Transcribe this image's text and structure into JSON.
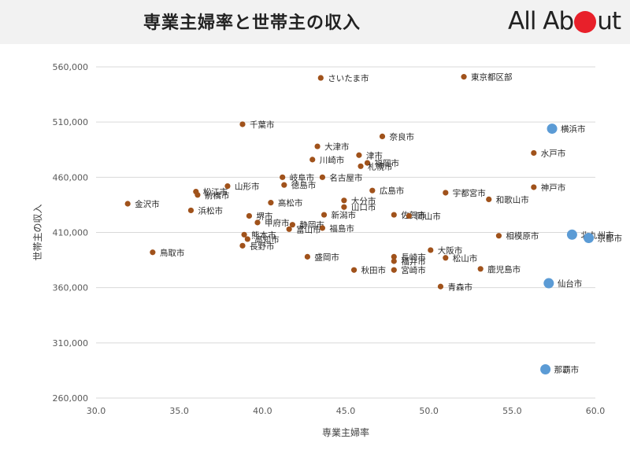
{
  "header": {
    "title": "専業主婦率と世帯主の収入",
    "logo": {
      "part1": "All Ab",
      "part2": "ut"
    }
  },
  "chart_data": {
    "type": "scatter",
    "title": "",
    "xlabel": "専業主婦率",
    "ylabel": "世帯主の収入",
    "xlim": [
      30.0,
      60.0
    ],
    "ylim": [
      260000,
      560000
    ],
    "xticks": [
      30.0,
      35.0,
      40.0,
      45.0,
      50.0,
      55.0,
      60.0
    ],
    "yticks": [
      260000,
      310000,
      360000,
      410000,
      460000,
      510000,
      560000
    ],
    "grid": "vertical",
    "colors": {
      "regular": "#a0521b",
      "highlight": "#5b9bd5"
    },
    "points": [
      {
        "label": "さいたま市",
        "x": 43.5,
        "y": 550000
      },
      {
        "label": "東京都区部",
        "x": 52.1,
        "y": 551000
      },
      {
        "label": "千葉市",
        "x": 38.8,
        "y": 508000
      },
      {
        "label": "奈良市",
        "x": 47.2,
        "y": 497000
      },
      {
        "label": "横浜市",
        "x": 57.4,
        "y": 504000,
        "highlight": true
      },
      {
        "label": "大津市",
        "x": 43.3,
        "y": 488000
      },
      {
        "label": "津市",
        "x": 45.8,
        "y": 480000
      },
      {
        "label": "川崎市",
        "x": 43.0,
        "y": 476000
      },
      {
        "label": "福岡市",
        "x": 46.3,
        "y": 473000
      },
      {
        "label": "水戸市",
        "x": 56.3,
        "y": 482000
      },
      {
        "label": "岐阜市",
        "x": 41.2,
        "y": 460000
      },
      {
        "label": "名古屋市",
        "x": 43.6,
        "y": 460000
      },
      {
        "label": "札幌市",
        "x": 45.9,
        "y": 470000
      },
      {
        "label": "徳島市",
        "x": 41.3,
        "y": 453000
      },
      {
        "label": "宇都宮市",
        "x": 51.0,
        "y": 446000
      },
      {
        "label": "神戸市",
        "x": 56.3,
        "y": 451000
      },
      {
        "label": "松江市",
        "x": 36.0,
        "y": 447000
      },
      {
        "label": "前橋市",
        "x": 36.1,
        "y": 444000
      },
      {
        "label": "山形市",
        "x": 37.9,
        "y": 452000
      },
      {
        "label": "高松市",
        "x": 40.5,
        "y": 437000
      },
      {
        "label": "広島市",
        "x": 46.6,
        "y": 448000
      },
      {
        "label": "大分市",
        "x": 44.9,
        "y": 439000
      },
      {
        "label": "和歌山市",
        "x": 53.6,
        "y": 440000
      },
      {
        "label": "金沢市",
        "x": 31.9,
        "y": 436000
      },
      {
        "label": "浜松市",
        "x": 35.7,
        "y": 430000
      },
      {
        "label": "堺市",
        "x": 39.2,
        "y": 425000
      },
      {
        "label": "山口市",
        "x": 44.9,
        "y": 433000
      },
      {
        "label": "新潟市",
        "x": 43.7,
        "y": 426000
      },
      {
        "label": "佐賀市",
        "x": 47.9,
        "y": 426000
      },
      {
        "label": "甲府市",
        "x": 39.7,
        "y": 419000
      },
      {
        "label": "静岡市",
        "x": 41.8,
        "y": 417000
      },
      {
        "label": "岡山市",
        "x": 48.8,
        "y": 425000
      },
      {
        "label": "熊本市",
        "x": 38.9,
        "y": 408000
      },
      {
        "label": "福島市",
        "x": 43.6,
        "y": 414000
      },
      {
        "label": "富山市",
        "x": 41.6,
        "y": 413000
      },
      {
        "label": "北九州市",
        "x": 58.6,
        "y": 408000,
        "highlight": true
      },
      {
        "label": "相模原市",
        "x": 54.2,
        "y": 407000
      },
      {
        "label": "京都市",
        "x": 59.6,
        "y": 405000,
        "highlight": true
      },
      {
        "label": "高知市",
        "x": 39.1,
        "y": 404000
      },
      {
        "label": "長野市",
        "x": 38.8,
        "y": 398000
      },
      {
        "label": "鳥取市",
        "x": 33.4,
        "y": 392000
      },
      {
        "label": "大阪市",
        "x": 50.1,
        "y": 394000
      },
      {
        "label": "長崎市",
        "x": 47.9,
        "y": 388000
      },
      {
        "label": "盛岡市",
        "x": 42.7,
        "y": 388000
      },
      {
        "label": "松山市",
        "x": 51.0,
        "y": 387000
      },
      {
        "label": "福井市",
        "x": 47.9,
        "y": 384000
      },
      {
        "label": "宮崎市",
        "x": 47.9,
        "y": 376000
      },
      {
        "label": "鹿児島市",
        "x": 53.1,
        "y": 377000
      },
      {
        "label": "秋田市",
        "x": 45.5,
        "y": 376000
      },
      {
        "label": "仙台市",
        "x": 57.2,
        "y": 364000,
        "highlight": true
      },
      {
        "label": "青森市",
        "x": 50.7,
        "y": 361000
      },
      {
        "label": "那覇市",
        "x": 57.0,
        "y": 286000,
        "highlight": true
      }
    ]
  }
}
